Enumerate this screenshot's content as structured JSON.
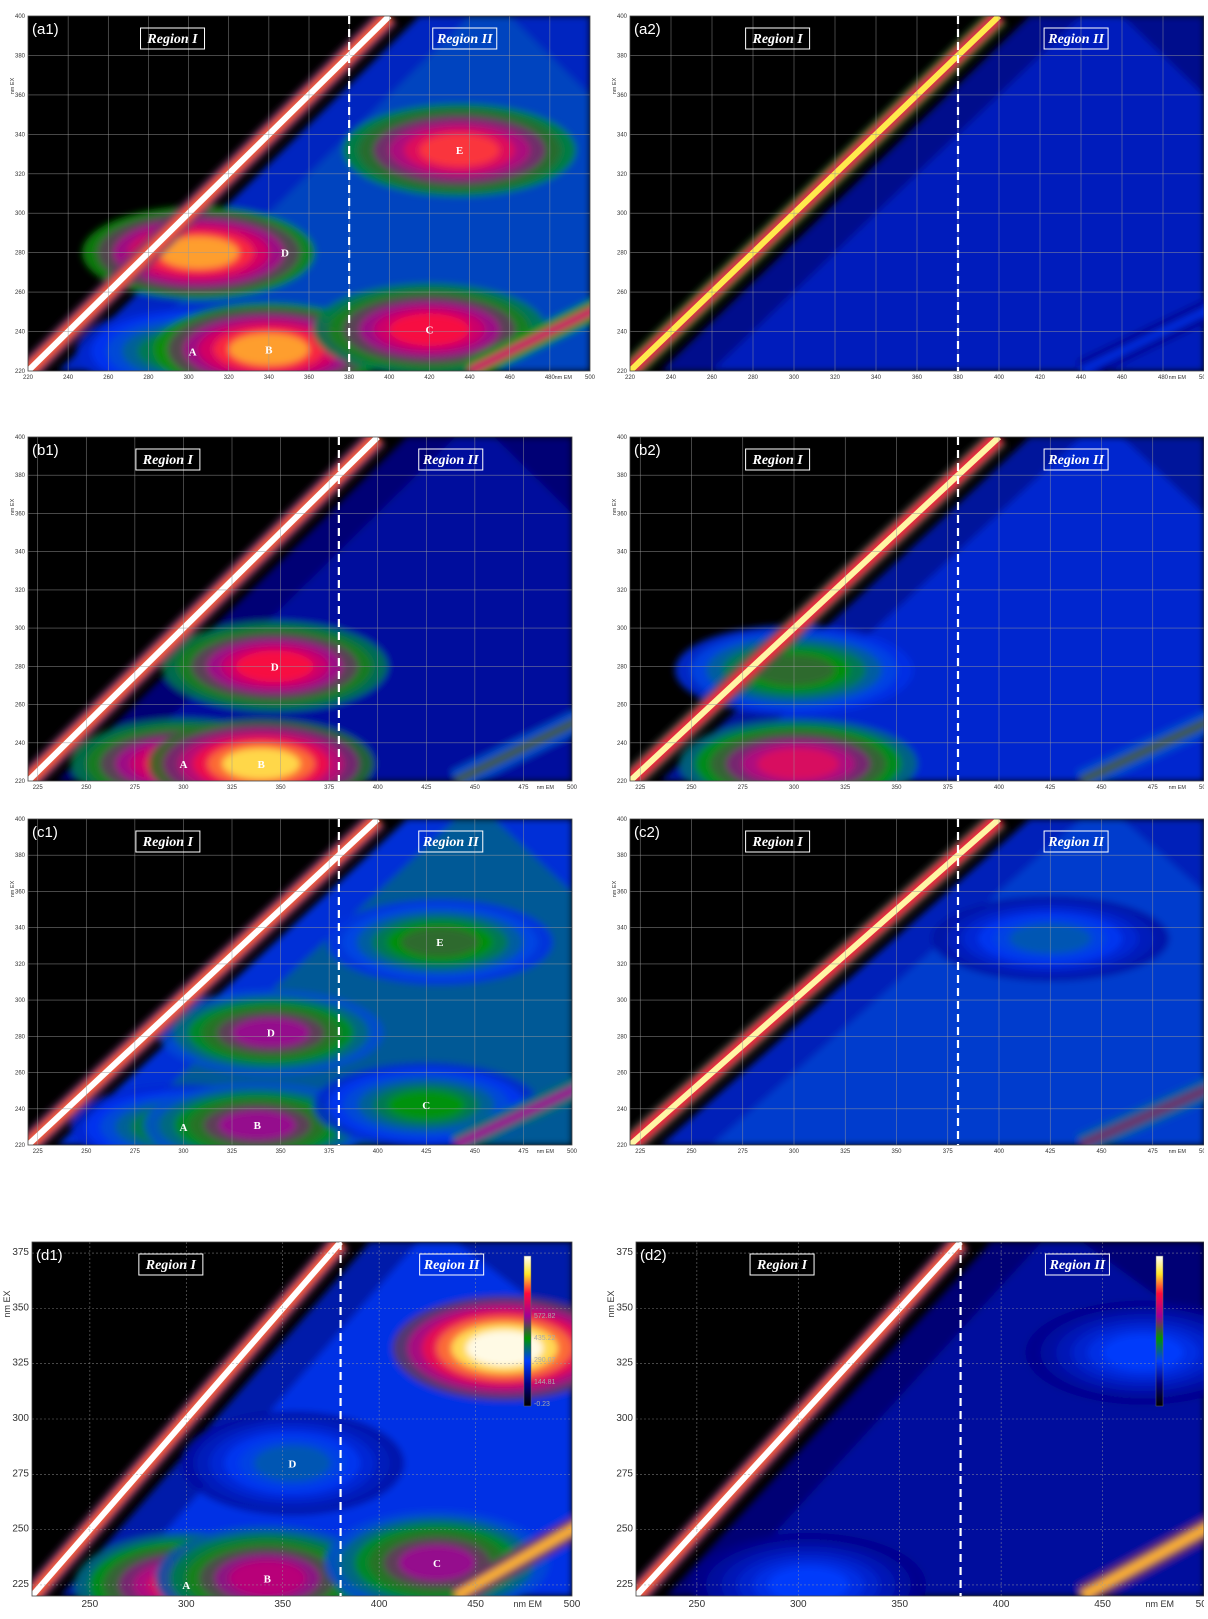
{
  "chart_data": [
    {
      "id": "a1",
      "type": "heatmap",
      "panel_label": "(a1)",
      "region_labels": [
        "Region I",
        "Region II"
      ],
      "region_boundary_x": 380,
      "xlabel": "nm EM",
      "ylabel": "nm EX",
      "xlim": [
        220,
        500
      ],
      "ylim": [
        220,
        400
      ],
      "xticks": [
        220,
        240,
        260,
        280,
        300,
        320,
        340,
        360,
        380,
        400,
        420,
        440,
        460,
        480,
        500
      ],
      "yticks": [
        220,
        240,
        260,
        280,
        300,
        320,
        340,
        360,
        380,
        400
      ],
      "scatter_band": {
        "intensity": 1.0
      },
      "second_order_band": {
        "intensity": 0.8
      },
      "peaks": [
        {
          "label": "A",
          "em": 302,
          "ex": 230,
          "intensity": 0.45
        },
        {
          "label": "B",
          "em": 340,
          "ex": 231,
          "intensity": 0.85
        },
        {
          "label": "C",
          "em": 420,
          "ex": 241,
          "intensity": 0.75
        },
        {
          "label": "D",
          "em": 305,
          "ex": 280,
          "intensity": 0.85,
          "label_em": 348
        },
        {
          "label": "E",
          "em": 435,
          "ex": 332,
          "intensity": 0.78
        }
      ],
      "background": 0.25
    },
    {
      "id": "a2",
      "type": "heatmap",
      "panel_label": "(a2)",
      "region_labels": [
        "Region I",
        "Region II"
      ],
      "region_boundary_x": 380,
      "xlabel": "nm EM",
      "ylabel": "nm EX",
      "xlim": [
        220,
        500
      ],
      "ylim": [
        220,
        400
      ],
      "xticks": [
        220,
        240,
        260,
        280,
        300,
        320,
        340,
        360,
        380,
        400,
        420,
        440,
        460,
        480,
        500
      ],
      "yticks": [
        220,
        240,
        260,
        280,
        300,
        320,
        340,
        360,
        380,
        400
      ],
      "scatter_band": {
        "intensity": 0.9
      },
      "second_order_band": {
        "intensity": 0.3
      },
      "peaks": [],
      "background": 0.18
    },
    {
      "id": "b1",
      "type": "heatmap",
      "panel_label": "(b1)",
      "region_labels": [
        "Region I",
        "Region II"
      ],
      "region_boundary_x": 380,
      "xlabel": "nm EM",
      "ylabel": "nm EX",
      "xlim": [
        220,
        500
      ],
      "ylim": [
        220,
        400
      ],
      "xticks": [
        225,
        250,
        275,
        300,
        325,
        350,
        375,
        400,
        425,
        450,
        475,
        500
      ],
      "yticks": [
        220,
        240,
        260,
        280,
        300,
        320,
        340,
        360,
        380,
        400
      ],
      "scatter_band": {
        "intensity": 1.0
      },
      "second_order_band": {
        "intensity": 0.6
      },
      "peaks": [
        {
          "label": "A",
          "em": 300,
          "ex": 229,
          "intensity": 0.75
        },
        {
          "label": "B",
          "em": 340,
          "ex": 229,
          "intensity": 0.9
        },
        {
          "label": "D",
          "em": 347,
          "ex": 280,
          "intensity": 0.75
        }
      ],
      "background": 0.15
    },
    {
      "id": "b2",
      "type": "heatmap",
      "panel_label": "(b2)",
      "region_labels": [
        "Region I",
        "Region II"
      ],
      "region_boundary_x": 380,
      "xlabel": "nm EM",
      "ylabel": "nm EX",
      "xlim": [
        220,
        500
      ],
      "ylim": [
        220,
        400
      ],
      "xticks": [
        225,
        250,
        275,
        300,
        325,
        350,
        375,
        400,
        425,
        450,
        475,
        500
      ],
      "yticks": [
        220,
        240,
        260,
        280,
        300,
        320,
        340,
        360,
        380,
        400
      ],
      "scatter_band": {
        "intensity": 0.95
      },
      "second_order_band": {
        "intensity": 0.6
      },
      "peaks": [
        {
          "label": "",
          "em": 302,
          "ex": 229,
          "intensity": 0.7
        },
        {
          "label": "",
          "em": 300,
          "ex": 278,
          "intensity": 0.5
        }
      ],
      "background": 0.2
    },
    {
      "id": "c1",
      "type": "heatmap",
      "panel_label": "(c1)",
      "region_labels": [
        "Region I",
        "Region II"
      ],
      "region_boundary_x": 380,
      "xlabel": "nm EM",
      "ylabel": "nm EX",
      "xlim": [
        220,
        500
      ],
      "ylim": [
        220,
        400
      ],
      "xticks": [
        225,
        250,
        275,
        300,
        325,
        350,
        375,
        400,
        425,
        450,
        475,
        500
      ],
      "yticks": [
        220,
        240,
        260,
        280,
        300,
        320,
        340,
        360,
        380,
        400
      ],
      "scatter_band": {
        "intensity": 1.0
      },
      "second_order_band": {
        "intensity": 0.7
      },
      "peaks": [
        {
          "label": "A",
          "em": 300,
          "ex": 230,
          "intensity": 0.45
        },
        {
          "label": "B",
          "em": 338,
          "ex": 231,
          "intensity": 0.6
        },
        {
          "label": "C",
          "em": 425,
          "ex": 242,
          "intensity": 0.45
        },
        {
          "label": "D",
          "em": 345,
          "ex": 282,
          "intensity": 0.6
        },
        {
          "label": "E",
          "em": 432,
          "ex": 332,
          "intensity": 0.5
        }
      ],
      "background": 0.28
    },
    {
      "id": "c2",
      "type": "heatmap",
      "panel_label": "(c2)",
      "region_labels": [
        "Region I",
        "Region II"
      ],
      "region_boundary_x": 380,
      "xlabel": "nm EM",
      "ylabel": "nm EX",
      "xlim": [
        220,
        500
      ],
      "ylim": [
        220,
        400
      ],
      "xticks": [
        225,
        250,
        275,
        300,
        325,
        350,
        375,
        400,
        425,
        450,
        475,
        500
      ],
      "yticks": [
        220,
        240,
        260,
        280,
        300,
        320,
        340,
        360,
        380,
        400
      ],
      "scatter_band": {
        "intensity": 0.95
      },
      "second_order_band": {
        "intensity": 0.65
      },
      "peaks": [
        {
          "label": "",
          "em": 425,
          "ex": 334,
          "intensity": 0.35
        }
      ],
      "background": 0.24
    },
    {
      "id": "d1",
      "type": "heatmap",
      "panel_label": "(d1)",
      "region_labels": [
        "Region I",
        "Region II"
      ],
      "region_boundary_x": 380,
      "xlabel": "nm EM",
      "ylabel": "nm EX",
      "xlim": [
        220,
        500
      ],
      "ylim": [
        220,
        380
      ],
      "xticks": [
        250,
        300,
        350,
        400,
        450,
        500
      ],
      "yticks": [
        225,
        250,
        275,
        300,
        325,
        350,
        375
      ],
      "scatter_band": {
        "intensity": 1.0
      },
      "second_order_band": {
        "intensity": 1.0
      },
      "peaks": [
        {
          "label": "A",
          "em": 300,
          "ex": 225,
          "intensity": 0.7
        },
        {
          "label": "B",
          "em": 342,
          "ex": 228,
          "intensity": 0.65
        },
        {
          "label": "C",
          "em": 430,
          "ex": 235,
          "intensity": 0.6
        },
        {
          "label": "D",
          "em": 355,
          "ex": 280,
          "intensity": 0.35
        },
        {
          "label": "",
          "em": 465,
          "ex": 332,
          "intensity": 1.0
        }
      ],
      "background": 0.22,
      "colorbar": {
        "labels": [
          "572.82",
          "435.22",
          "290.07",
          "144.81",
          "-0.23"
        ]
      }
    },
    {
      "id": "d2",
      "type": "heatmap",
      "panel_label": "(d2)",
      "region_labels": [
        "Region I",
        "Region II"
      ],
      "region_boundary_x": 380,
      "xlabel": "nm EM",
      "ylabel": "nm EX",
      "xlim": [
        220,
        500
      ],
      "ylim": [
        220,
        380
      ],
      "xticks": [
        250,
        300,
        350,
        400,
        450,
        500
      ],
      "yticks": [
        225,
        250,
        275,
        300,
        325,
        350,
        375
      ],
      "scatter_band": {
        "intensity": 1.0
      },
      "second_order_band": {
        "intensity": 1.0
      },
      "peaks": [
        {
          "label": "",
          "em": 305,
          "ex": 225,
          "intensity": 0.3
        },
        {
          "label": "",
          "em": 470,
          "ex": 330,
          "intensity": 0.3
        }
      ],
      "background": 0.15,
      "colorbar": {
        "labels": [
          "",
          "",
          "",
          "",
          ""
        ]
      }
    }
  ]
}
